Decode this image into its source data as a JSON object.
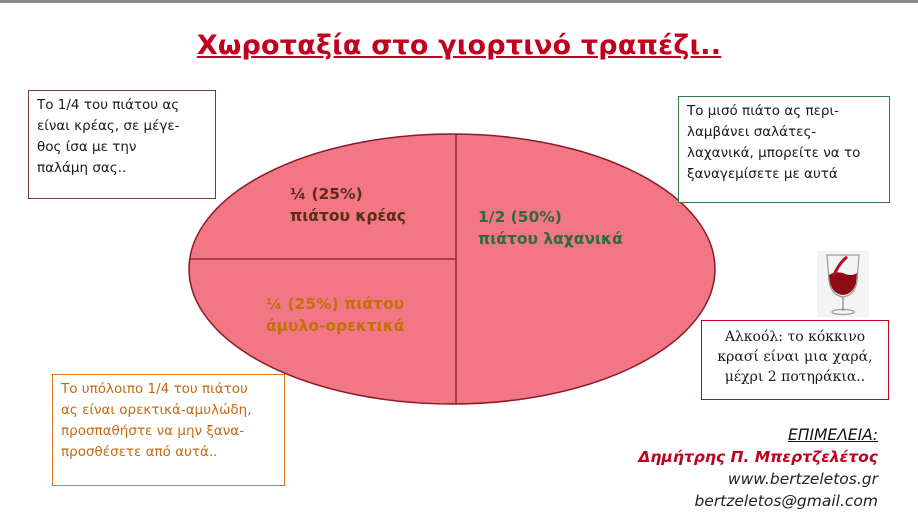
{
  "title": "Χωροταξία στο γιορτινό τραπέζι..",
  "plate": {
    "fill": "#f27684",
    "segments": [
      {
        "share": 0.25,
        "line1": "¼ (25%)",
        "line2": "πιάτου κρέας",
        "color": "#5a2e16"
      },
      {
        "share": 0.25,
        "line1": "¼ (25%) πιάτου",
        "line2": "άμυλο-ορεκτικά",
        "color": "#c4700a"
      },
      {
        "share": 0.5,
        "line1": "1/2 (50%)",
        "line2": "πιάτου  λαχανικά",
        "color": "#2f6a3a"
      }
    ]
  },
  "boxes": {
    "meat": [
      "Το 1/4 του πιάτου ας",
      "είναι κρέας, σε μέγε-",
      "θος ίσα με την",
      "παλάμη σας.."
    ],
    "vegetables": [
      "Το μισό πιάτο ας περι-",
      "λαμβάνει σαλάτες-",
      "λαχανικά, μπορείτε να το",
      "ξαναγεμίσετε με αυτά"
    ],
    "starch": [
      "Το υπόλοιπο 1/4 του πιάτου",
      "ας είναι ορεκτικά-αμυλώδη,",
      "προσπαθήστε να μην ξανα-",
      "προσθέσετε από αυτά.."
    ],
    "wine": [
      "Αλκοόλ: το κόκκινο",
      "κρασί είναι μια χαρά,",
      "μέχρι 2 ποτηράκια.."
    ]
  },
  "wine_icon": "wine-glass-icon",
  "credits": {
    "label": "ΕΠΙΜΕΛΕΙΑ:",
    "name": "Δημήτρης Π. Μπερτζελέτος",
    "website": "www.bertzeletos.gr",
    "email": "bertzeletos@gmail.com"
  }
}
